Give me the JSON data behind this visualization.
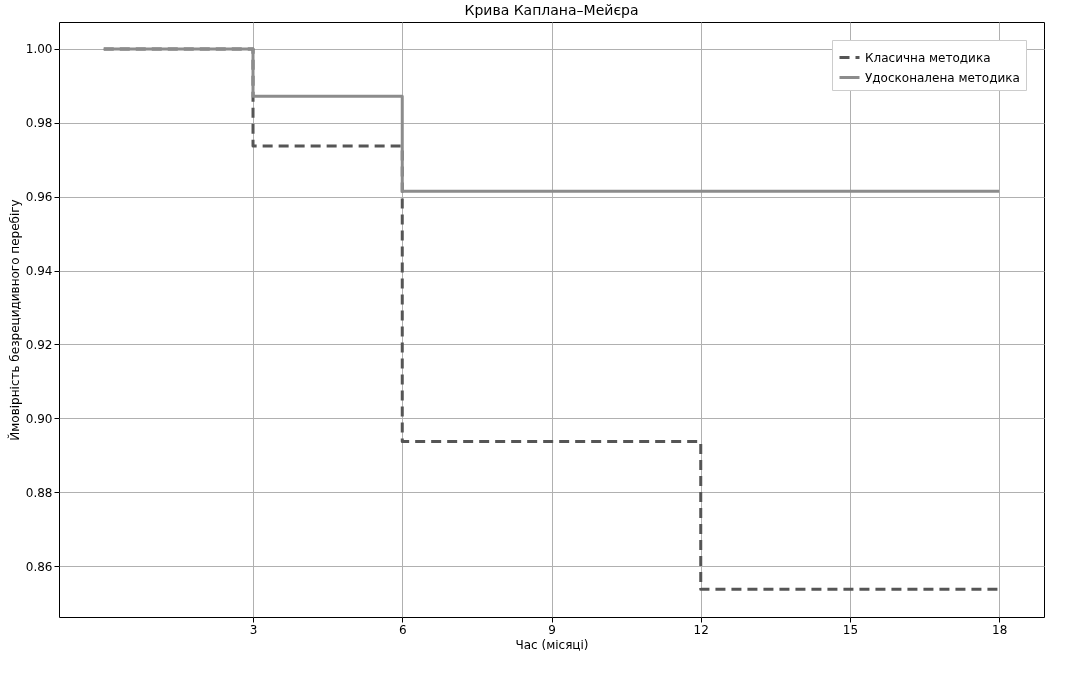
{
  "chart_data": {
    "type": "step",
    "title": "Крива Каплана–Мейєра",
    "xlabel": "Час (місяці)",
    "ylabel": "Ймовірність безрецидивного перебігу",
    "x": [
      0,
      3,
      6,
      12,
      18
    ],
    "series": [
      {
        "name": "Класична методика",
        "color": "#555555",
        "line_style": "dashed",
        "values": [
          1.0,
          0.9737,
          0.8937,
          0.8537,
          0.8537
        ]
      },
      {
        "name": "Удосконалена методика",
        "color": "#8c8c8c",
        "line_style": "solid",
        "values": [
          1.0,
          0.9872,
          0.9615,
          0.9615,
          0.9615
        ]
      }
    ],
    "xlim": [
      -0.9,
      18.9
    ],
    "xticks": [
      3,
      6,
      9,
      12,
      15,
      18
    ],
    "ylim": [
      0.8462,
      1.0073
    ],
    "yticks": [
      0.86,
      0.88,
      {
        "value": 0.9,
        "label": "0.90"
      },
      0.92,
      0.94,
      0.96,
      0.98,
      {
        "value": 1.0,
        "label": "1.00"
      }
    ],
    "grid": true,
    "legend": "top right"
  }
}
